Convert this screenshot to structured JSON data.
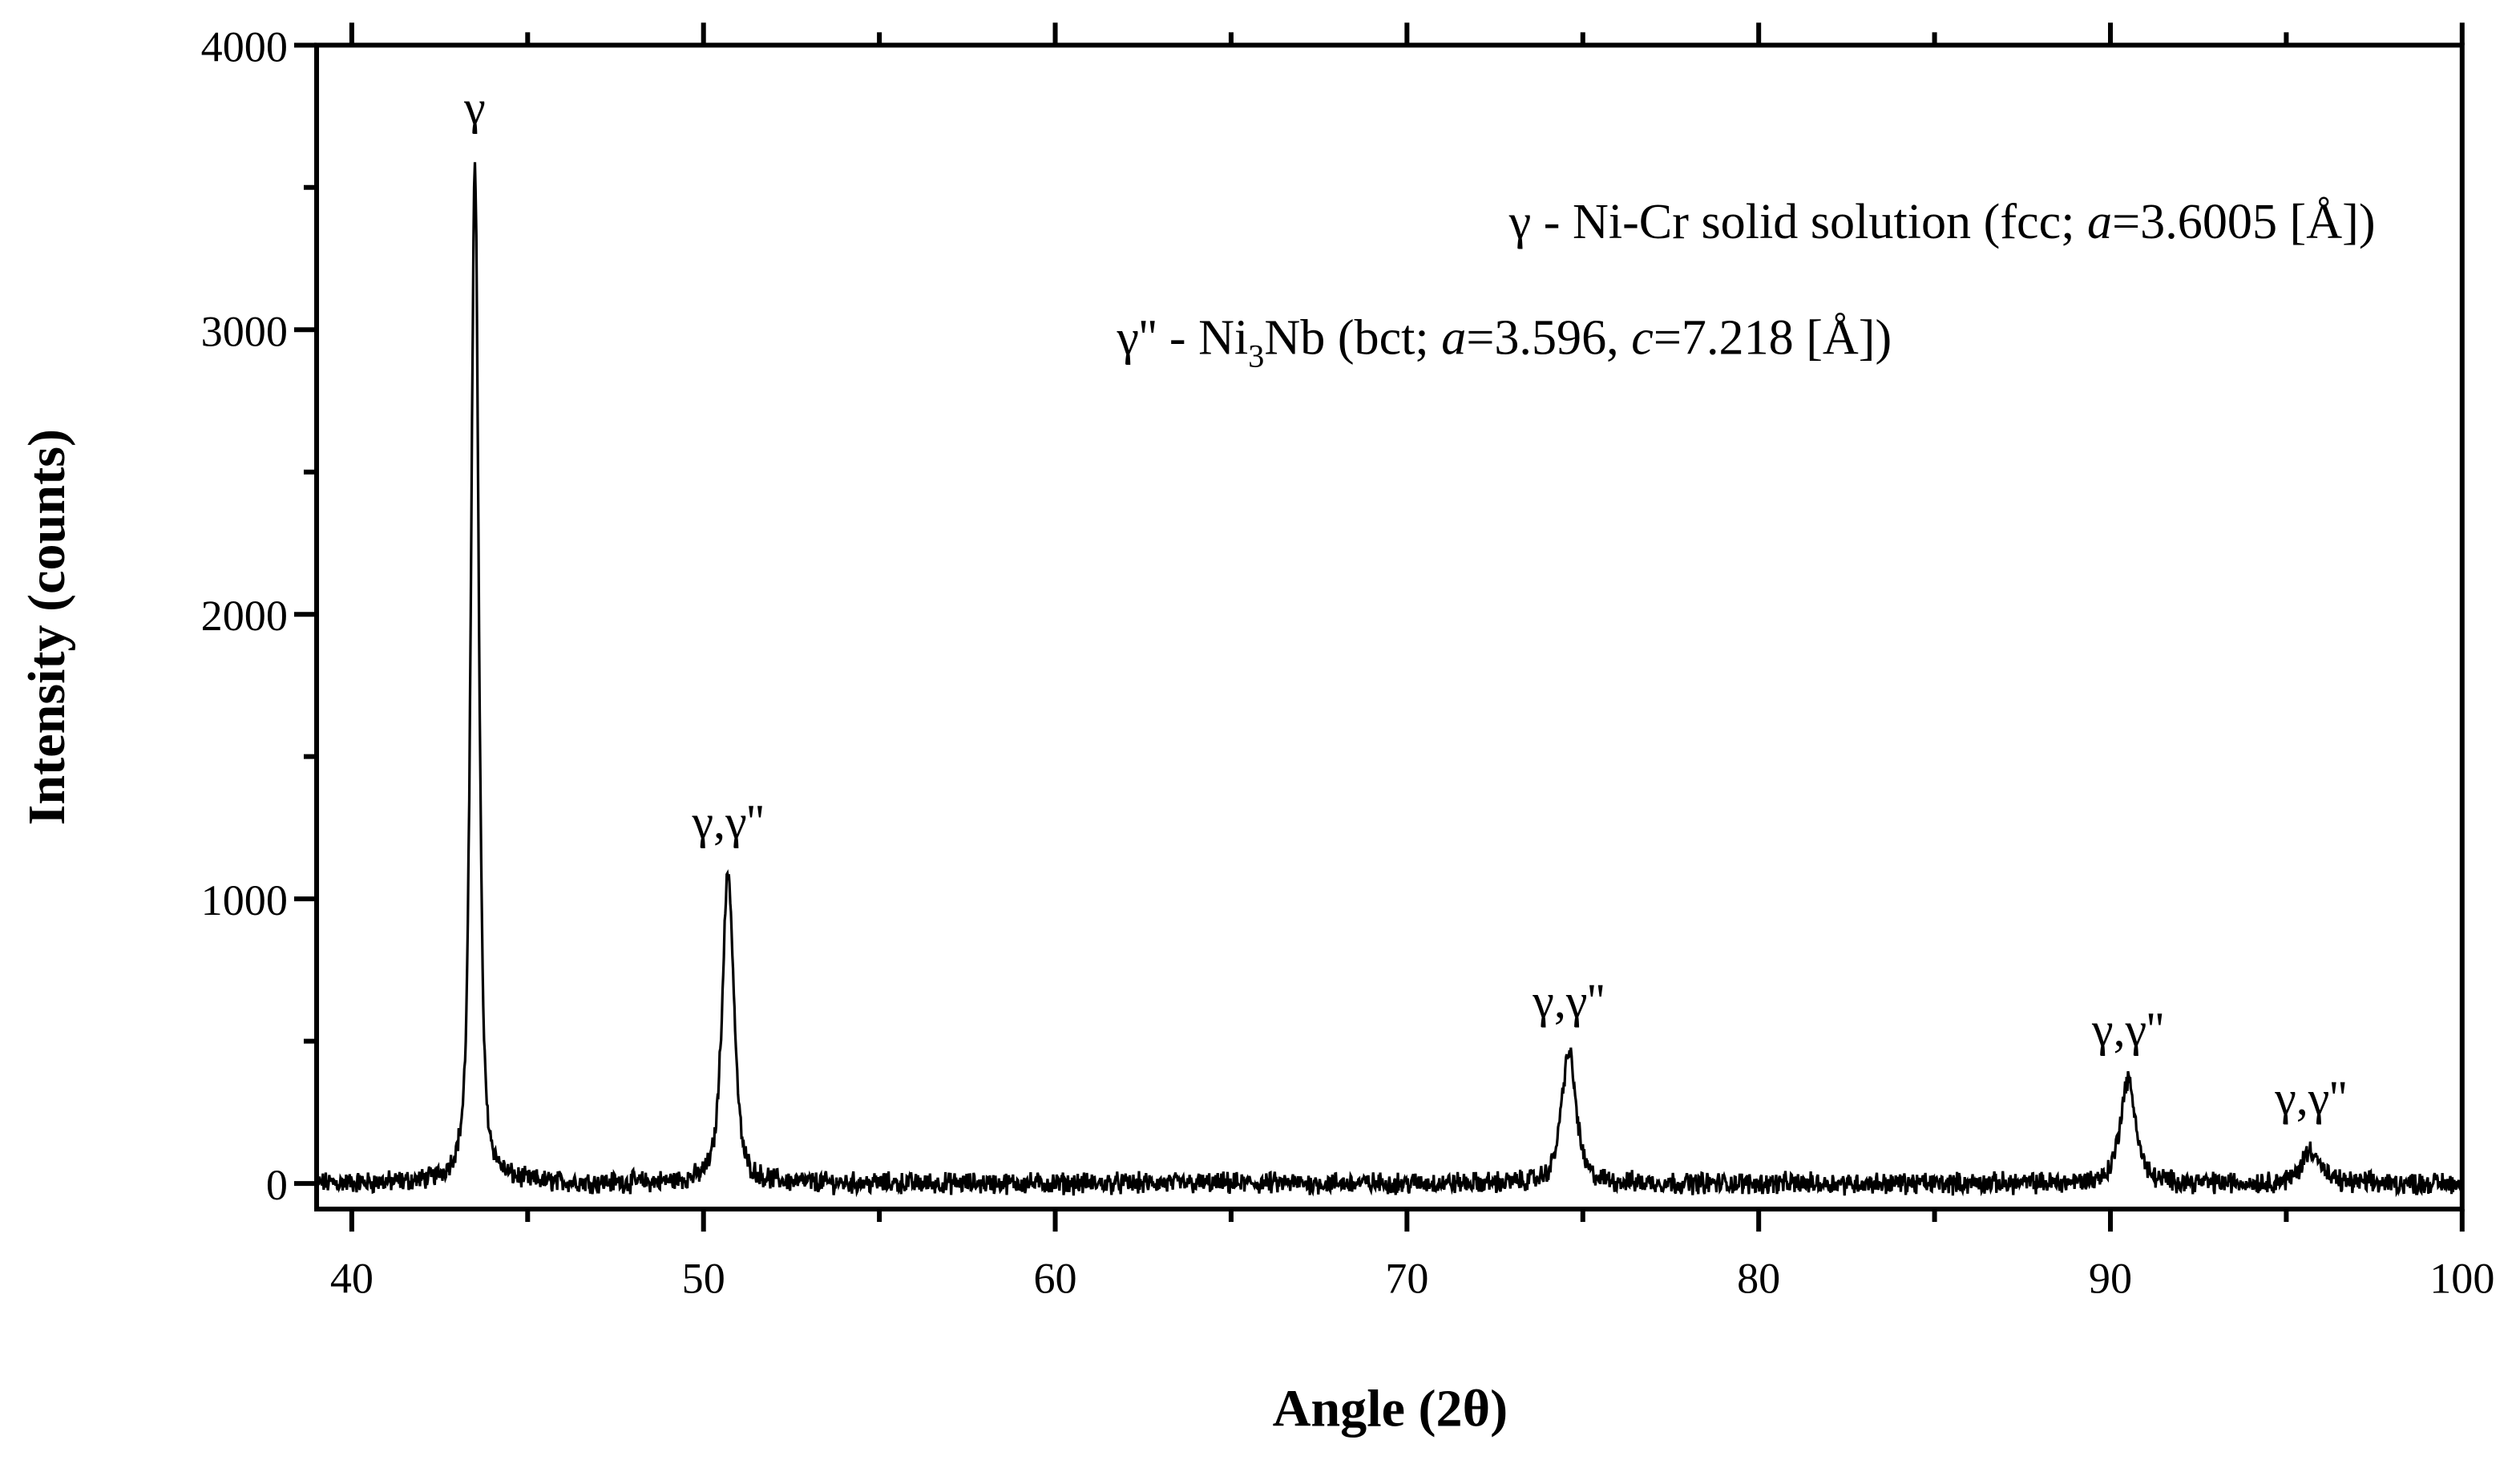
{
  "chart_data": {
    "type": "line",
    "xlabel": "Angle (2θ)",
    "ylabel": "Intensity (counts)",
    "xlim": [
      39,
      100
    ],
    "ylim": [
      -90,
      4000
    ],
    "xticks": [
      40,
      50,
      60,
      70,
      80,
      90,
      100
    ],
    "yticks": [
      0,
      1000,
      2000,
      3000,
      4000
    ],
    "grid": false,
    "color": "#000000",
    "peaks": [
      {
        "x": 43.5,
        "y": 3600,
        "label": "γ"
      },
      {
        "x": 50.7,
        "y": 1090,
        "label": "γ,γ''"
      },
      {
        "x": 74.6,
        "y": 460,
        "label": "γ,γ''"
      },
      {
        "x": 90.5,
        "y": 360,
        "label": "γ,γ''"
      },
      {
        "x": 95.7,
        "y": 120,
        "label": "γ,γ''"
      }
    ],
    "baseline": 0,
    "legend": {
      "line1": {
        "prefix": "γ - Ni-Cr solid solution (fcc; ",
        "a_var": "a",
        "a_val": "=3.6005 [Å])"
      },
      "line2": {
        "prefix": "γ'' - Ni",
        "sub": "3",
        "mid": "Nb (bct; ",
        "a_var": "a",
        "a_val": "=3.596, ",
        "c_var": "c",
        "c_val": "=7.218 [Å])"
      },
      "placement": "top-right"
    }
  }
}
